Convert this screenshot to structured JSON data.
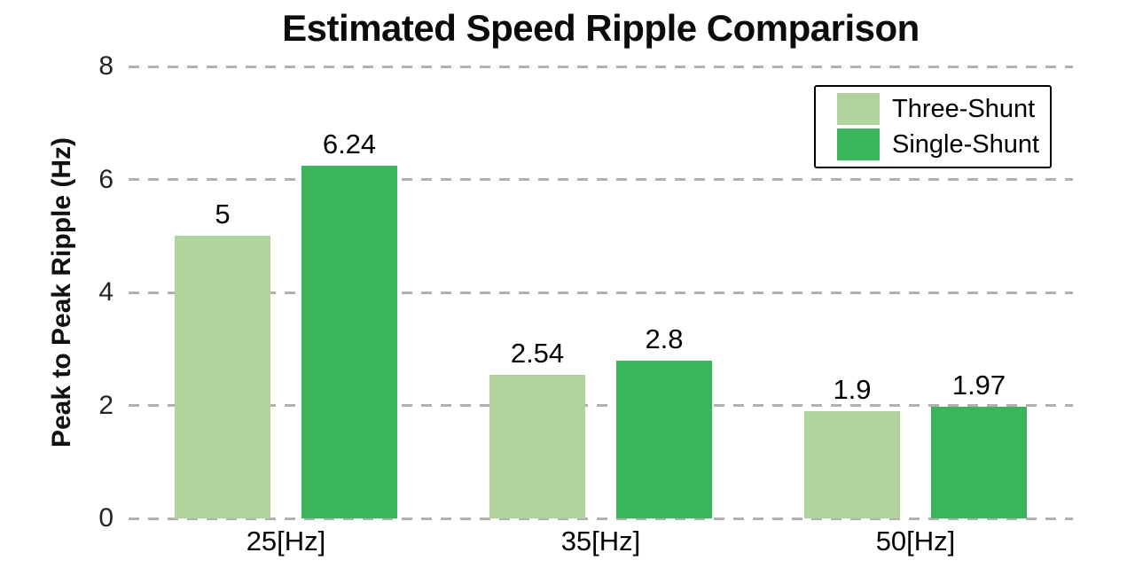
{
  "page": {
    "background": "#ffffff"
  },
  "chart_data": {
    "type": "bar",
    "title": "Estimated Speed Ripple Comparison",
    "ylabel": "Peak to Peak Ripple (Hz)",
    "xlabel": "",
    "categories": [
      "25[Hz]",
      "35[Hz]",
      "50[Hz]"
    ],
    "series": [
      {
        "name": "Three-Shunt",
        "color": "#b1d39c",
        "values": [
          5,
          2.54,
          1.9
        ]
      },
      {
        "name": "Single-Shunt",
        "color": "#3ab55c",
        "values": [
          6.24,
          2.8,
          1.97
        ]
      }
    ],
    "value_labels": [
      [
        "5",
        "2.54",
        "1.9"
      ],
      [
        "6.24",
        "2.8",
        "1.97"
      ]
    ],
    "ylim": [
      0,
      8
    ],
    "yticks": [
      0,
      2,
      4,
      6,
      8
    ],
    "grid": {
      "axis": "y",
      "style": "dashed",
      "color": "#b1b1b1"
    },
    "legend": {
      "position": "upper right",
      "entries": [
        "Three-Shunt",
        "Single-Shunt"
      ]
    }
  }
}
